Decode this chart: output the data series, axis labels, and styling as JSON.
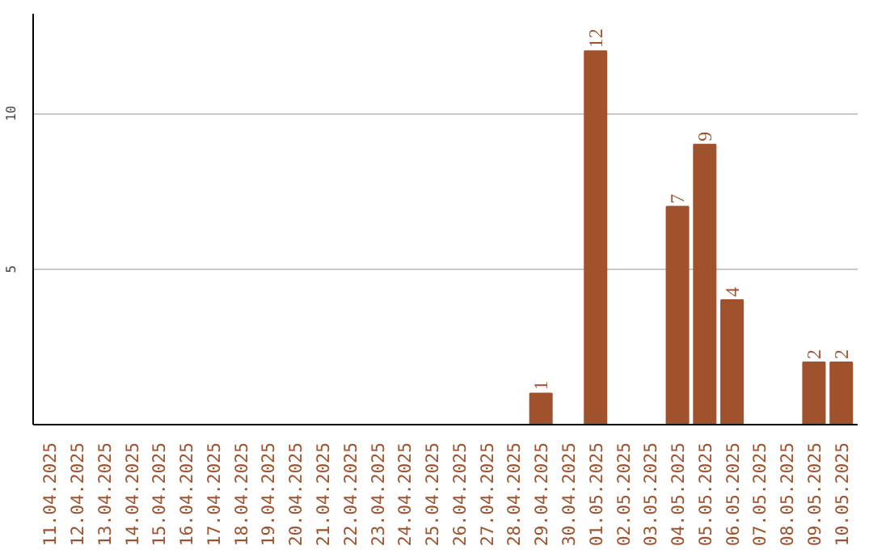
{
  "chart_data": {
    "type": "bar",
    "categories": [
      "11.04.2025",
      "12.04.2025",
      "13.04.2025",
      "14.04.2025",
      "15.04.2025",
      "16.04.2025",
      "17.04.2025",
      "18.04.2025",
      "19.04.2025",
      "20.04.2025",
      "21.04.2025",
      "22.04.2025",
      "23.04.2025",
      "24.04.2025",
      "25.04.2025",
      "26.04.2025",
      "27.04.2025",
      "28.04.2025",
      "29.04.2025",
      "30.04.2025",
      "01.05.2025",
      "02.05.2025",
      "03.05.2025",
      "04.05.2025",
      "05.05.2025",
      "06.05.2025",
      "07.05.2025",
      "08.05.2025",
      "09.05.2025",
      "10.05.2025"
    ],
    "values": [
      0,
      0,
      0,
      0,
      0,
      0,
      0,
      0,
      0,
      0,
      0,
      0,
      0,
      0,
      0,
      0,
      0,
      0,
      1,
      0,
      12,
      0,
      0,
      7,
      9,
      4,
      0,
      0,
      2,
      2
    ],
    "value_labels": [
      null,
      null,
      null,
      null,
      null,
      null,
      null,
      null,
      null,
      null,
      null,
      null,
      null,
      null,
      null,
      null,
      null,
      null,
      "1",
      null,
      "12",
      null,
      null,
      "7",
      "9",
      "4",
      null,
      null,
      "2",
      "2"
    ],
    "color": "#a0522d",
    "ylim": [
      0,
      13.2
    ],
    "yticks": [
      5,
      10
    ],
    "grid": "y",
    "legend": false
  }
}
